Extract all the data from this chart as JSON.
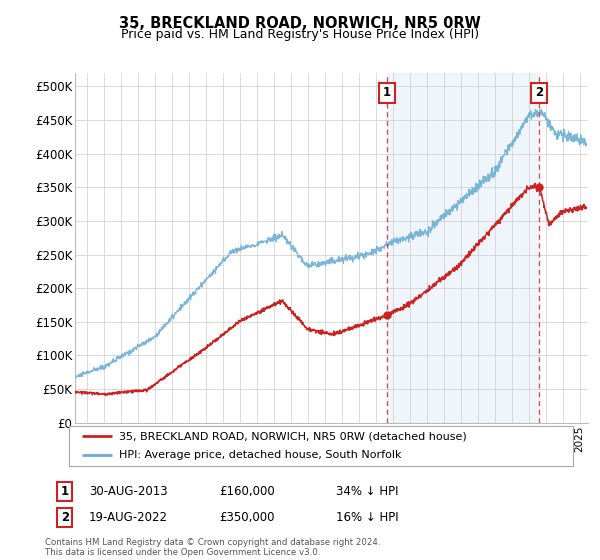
{
  "title": "35, BRECKLAND ROAD, NORWICH, NR5 0RW",
  "subtitle": "Price paid vs. HM Land Registry's House Price Index (HPI)",
  "ylabel_ticks": [
    "£0",
    "£50K",
    "£100K",
    "£150K",
    "£200K",
    "£250K",
    "£300K",
    "£350K",
    "£400K",
    "£450K",
    "£500K"
  ],
  "ytick_vals": [
    0,
    50000,
    100000,
    150000,
    200000,
    250000,
    300000,
    350000,
    400000,
    450000,
    500000
  ],
  "ylim": [
    0,
    520000
  ],
  "xlim_start": 1995.3,
  "xlim_end": 2025.5,
  "sale1_x": 2013.66,
  "sale1_y": 160000,
  "sale2_x": 2022.63,
  "sale2_y": 350000,
  "hpi_line_color": "#6aaed6",
  "hpi_fill_color": "#ddeeff",
  "sale_line_color": "#cc2222",
  "vline_color": "#dd4444",
  "annotation_box_color": "#cc2222",
  "grid_color": "#cccccc",
  "background_color": "#ffffff",
  "legend_line1": "35, BRECKLAND ROAD, NORWICH, NR5 0RW (detached house)",
  "legend_line2": "HPI: Average price, detached house, South Norfolk",
  "footnote1_label": "1",
  "footnote1_date": "30-AUG-2013",
  "footnote1_price": "£160,000",
  "footnote1_hpi": "34% ↓ HPI",
  "footnote2_label": "2",
  "footnote2_date": "19-AUG-2022",
  "footnote2_price": "£350,000",
  "footnote2_hpi": "16% ↓ HPI",
  "copyright_text": "Contains HM Land Registry data © Crown copyright and database right 2024.\nThis data is licensed under the Open Government Licence v3.0."
}
